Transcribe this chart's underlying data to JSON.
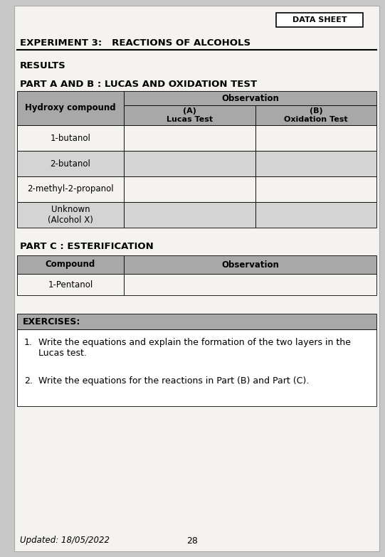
{
  "page_bg": "#c8c8c8",
  "paper_bg": "#f5f3ef",
  "header_box_text": "DATA SHEET",
  "experiment_title": "EXPERIMENT 3:   REACTIONS OF ALCOHOLS",
  "results_label": "RESULTS",
  "part_ab_label": "PART A AND B : LUCAS AND OXIDATION TEST",
  "table_ab_header_col1": "Hydroxy compound",
  "table_ab_obs_header": "Observation",
  "table_ab_col2": "(A)\nLucas Test",
  "table_ab_col3": "(B)\nOxidation Test",
  "table_ab_rows": [
    "1-butanol",
    "2-butanol",
    "2-methyl-2-propanol",
    "Unknown\n(Alcohol X)"
  ],
  "part_c_label": "PART C : ESTERIFICATION",
  "table_c_col1": "Compound",
  "table_c_obs": "Observation",
  "table_c_rows": [
    "1-Pentanol"
  ],
  "exercises_label": "EXERCISES:",
  "exercise1_num": "1.",
  "exercise1_text": "Write the equations and explain the formation of the two layers in the\nLucas test.",
  "exercise2_num": "2.",
  "exercise2_text": "Write the equations for the reactions in Part (B) and Part (C).",
  "footer_left": "Updated: 18/05/2022",
  "footer_center": "28",
  "table_header_gray": "#a8a8a8",
  "table_row_light": "#f5f3ef",
  "table_row_gray": "#d4d4d4",
  "exercises_header_gray": "#a8a8a8",
  "exercises_content_bg": "#ffffff"
}
